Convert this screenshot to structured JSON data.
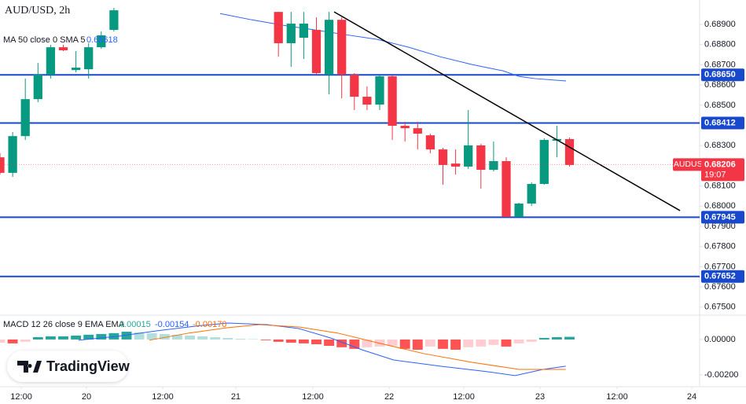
{
  "chart_data": [
    {
      "type": "candlestick",
      "title": "AUD/USD, 2h",
      "x": [
        0,
        1,
        2,
        3,
        4,
        5,
        6,
        7,
        8,
        9,
        22,
        23,
        24,
        25,
        26,
        27,
        28,
        29,
        30,
        31,
        32,
        33,
        34,
        35,
        36,
        37,
        38,
        39,
        40,
        41,
        42,
        43,
        44,
        45
      ],
      "open": [
        0.68242,
        0.68165,
        0.68347,
        0.6853,
        0.68651,
        0.68787,
        0.68674,
        0.68678,
        0.68787,
        0.68873,
        0.68962,
        0.68807,
        0.68834,
        0.68873,
        0.68651,
        0.68923,
        0.68651,
        0.68542,
        0.68503,
        0.68643,
        0.68398,
        0.68386,
        0.68351,
        0.68281,
        0.68211,
        0.68196,
        0.68301,
        0.6818,
        0.68223,
        0.67947,
        0.68013,
        0.6811,
        0.68324,
        0.68332
      ],
      "high": [
        0.68262,
        0.68367,
        0.68632,
        0.68709,
        0.68799,
        0.68799,
        0.68768,
        0.68807,
        0.68865,
        0.68982,
        0.68962,
        0.68962,
        0.68962,
        0.68935,
        0.68962,
        0.68935,
        0.68659,
        0.68593,
        0.68647,
        0.68647,
        0.68418,
        0.68418,
        0.68359,
        0.68289,
        0.68281,
        0.68476,
        0.68309,
        0.6832,
        0.68242,
        0.68017,
        0.68118,
        0.68336,
        0.68398,
        0.6834
      ],
      "low": [
        0.68157,
        0.68145,
        0.68328,
        0.68515,
        0.68632,
        0.68768,
        0.68663,
        0.68632,
        0.68779,
        0.68865,
        0.6874,
        0.6869,
        0.68729,
        0.68651,
        0.68554,
        0.68534,
        0.68476,
        0.68476,
        0.68476,
        0.68328,
        0.6832,
        0.68281,
        0.68262,
        0.68106,
        0.68157,
        0.68184,
        0.68087,
        0.68172,
        0.67947,
        0.67947,
        0.68001,
        0.68106,
        0.68242,
        0.68196
      ],
      "close": [
        0.68165,
        0.68347,
        0.6853,
        0.68651,
        0.68787,
        0.68772,
        0.68686,
        0.68787,
        0.68846,
        0.6897,
        0.68807,
        0.68904,
        0.68904,
        0.68659,
        0.68923,
        0.68651,
        0.68542,
        0.68503,
        0.68643,
        0.68398,
        0.68386,
        0.68359,
        0.68281,
        0.68204,
        0.68196,
        0.68301,
        0.6818,
        0.68223,
        0.67947,
        0.68013,
        0.6811,
        0.68328,
        0.68332,
        0.68204
      ],
      "up_color": "#089981",
      "down_color": "#f23645",
      "grid": false,
      "xlim": [
        0,
        55.28
      ],
      "xticks": [
        {
          "value": 1.68,
          "label": "12:00"
        },
        {
          "value": 6.83,
          "label": "20"
        },
        {
          "value": 12.86,
          "label": "12:00"
        },
        {
          "value": 18.63,
          "label": "21"
        },
        {
          "value": 24.72,
          "label": "12:00"
        },
        {
          "value": 30.75,
          "label": "22"
        },
        {
          "value": 36.65,
          "label": "12:00"
        },
        {
          "value": 42.67,
          "label": "23"
        },
        {
          "value": 48.76,
          "label": "12:00"
        },
        {
          "value": 54.66,
          "label": "24"
        }
      ],
      "ylim": [
        0.67464,
        0.69021
      ],
      "yticks": [
        {
          "value": 0.689,
          "label": "0.68900"
        },
        {
          "value": 0.688,
          "label": "0.68800"
        },
        {
          "value": 0.687,
          "label": "0.68700"
        },
        {
          "value": 0.686,
          "label": "0.68600"
        },
        {
          "value": 0.685,
          "label": "0.68500"
        },
        {
          "value": 0.683,
          "label": "0.68300"
        },
        {
          "value": 0.681,
          "label": "0.68100"
        },
        {
          "value": 0.68,
          "label": "0.68000"
        },
        {
          "value": 0.679,
          "label": "0.67900"
        },
        {
          "value": 0.678,
          "label": "0.67800"
        },
        {
          "value": 0.677,
          "label": "0.67700"
        },
        {
          "value": 0.676,
          "label": "0.67600"
        },
        {
          "value": 0.675,
          "label": "0.67500"
        }
      ],
      "overlays": [
        {
          "name": "MA 50 close 0 SMA 5",
          "last": "0.68618",
          "color": "#2962ff",
          "x": [
            17.39,
            19.88,
            22.36,
            24.84,
            27.33,
            29.81,
            32.3,
            34.78,
            37.27,
            39.75,
            40.99,
            42.24,
            44.72
          ],
          "values": [
            0.68954,
            0.68923,
            0.68896,
            0.68873,
            0.68849,
            0.68826,
            0.68787,
            0.6874,
            0.68702,
            0.6867,
            0.68643,
            0.68632,
            0.6862
          ]
        }
      ],
      "levels": [
        {
          "value": 0.6865,
          "label": "0.68650"
        },
        {
          "value": 0.68412,
          "label": "0.68412"
        },
        {
          "value": 0.67945,
          "label": "0.67945"
        },
        {
          "value": 0.67652,
          "label": "0.67652"
        }
      ],
      "level_color": "#1848cc",
      "trendline": {
        "x": [
          26.4,
          53.73
        ],
        "values": [
          0.68962,
          0.67978
        ],
        "color": "#000000"
      },
      "last_price": {
        "name": "AUDUSD",
        "value": 0.68206,
        "label": "0.68206",
        "countdown": "19:07",
        "color": "#f23645"
      }
    },
    {
      "type": "macd",
      "title": "MACD 12 26 close 9 EMA EMA",
      "xlim": [
        0,
        55.28
      ],
      "ylim": [
        -0.00267,
        0.00133
      ],
      "yticks": [
        {
          "value": 0,
          "label": "0.00000"
        },
        {
          "value": -0.002,
          "label": "-0.00200"
        }
      ],
      "series": [
        {
          "kind": "histogram",
          "last": "0.00015",
          "color": "#26a69a",
          "palette": [
            "#26a69a",
            "#b2dfdb",
            "#ffcdd2",
            "#ff5252"
          ],
          "x": [
            0,
            1,
            2,
            3,
            4,
            5,
            6,
            7,
            8,
            9,
            10,
            11,
            12,
            13,
            14,
            15,
            16,
            17,
            18,
            19,
            20,
            21,
            22,
            23,
            24,
            25,
            26,
            27,
            28,
            29,
            30,
            31,
            32,
            33,
            34,
            35,
            36,
            37,
            38,
            39,
            40,
            41,
            42,
            43,
            44,
            45
          ],
          "values": [
            -0.00018,
            -0.00022,
            -0.00013,
            0.00013,
            0.00018,
            0.00018,
            0.00022,
            0.00027,
            0.00031,
            0.00036,
            0.00044,
            0.0004,
            0.00036,
            0.00031,
            0.00027,
            0.00022,
            0.00018,
            0.00013,
            9e-05,
            4e-05,
            2e-05,
            -4e-05,
            -0.00013,
            -0.00018,
            -0.00022,
            -0.00027,
            -0.00036,
            -0.00044,
            -0.00053,
            -0.00044,
            -0.0004,
            -0.00036,
            -0.00053,
            -0.00058,
            -0.0004,
            -0.00053,
            -0.00058,
            -0.00044,
            -0.0004,
            -0.00031,
            -0.0004,
            -0.00022,
            -0.00013,
            9e-05,
            0.00013,
            0.00015
          ]
        },
        {
          "kind": "line",
          "last": "-0.00154",
          "color": "#2962ff",
          "x": [
            6.2,
            9.3,
            12.4,
            15.5,
            18.0,
            21.1,
            23.6,
            26.1,
            28.6,
            31.1,
            34.8,
            38.5,
            40.7,
            42.9,
            44.7
          ],
          "values": [
            -4e-05,
            0.00018,
            0.00049,
            0.00076,
            0.00093,
            0.00084,
            0.00062,
            9e-05,
            -0.00058,
            -0.00116,
            -0.00151,
            -0.00182,
            -0.00204,
            -0.00169,
            -0.00151
          ]
        },
        {
          "kind": "line",
          "last": "-0.00170",
          "color": "#ff6d00",
          "x": [
            11.8,
            14.9,
            18.0,
            20.5,
            23.6,
            26.7,
            29.8,
            33.5,
            37.3,
            41.0,
            44.7
          ],
          "values": [
            -4e-05,
            0.00036,
            0.00067,
            0.00084,
            0.00071,
            0.00036,
            -0.00018,
            -0.0008,
            -0.00129,
            -0.00169,
            -0.00169
          ]
        }
      ]
    }
  ],
  "branding": "TradingView"
}
